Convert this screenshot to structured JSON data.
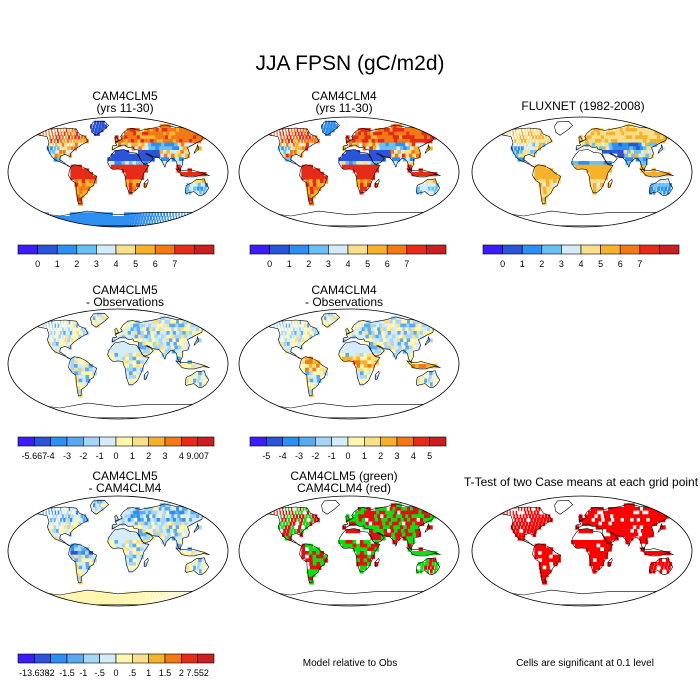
{
  "figure": {
    "title": "JJA FPSN (gC/m2d)"
  },
  "panels": [
    {
      "id": "p1",
      "title1": "CAM4CLM5",
      "title2": "(yrs 11-30)",
      "scheme": "abs"
    },
    {
      "id": "p2",
      "title1": "CAM4CLM4",
      "title2": "(yrs 11-30)",
      "scheme": "abs2"
    },
    {
      "id": "p3",
      "title1": "FLUXNET (1982-2008)",
      "title2": "",
      "scheme": "obs"
    },
    {
      "id": "p4",
      "title1": "CAM4CLM5",
      "title2": "- Observations",
      "scheme": "diff"
    },
    {
      "id": "p5",
      "title1": "CAM4CLM4",
      "title2": "- Observations",
      "scheme": "diff2"
    },
    {
      "id": "p6",
      "title1": "CAM4CLM5",
      "title2": "- CAM4CLM4",
      "scheme": "diff3"
    },
    {
      "id": "p7",
      "title1": "CAM4CLM5 (green)",
      "title2": "CAM4CLM4 (red)",
      "scheme": "greenred"
    },
    {
      "id": "p8",
      "title1": "T-Test of two Case means at each grid point",
      "title2": "",
      "scheme": "ttest"
    }
  ],
  "notes": {
    "model_relative": "Model relative to Obs",
    "significance": "Cells are significant at 0.1 level"
  },
  "chart_data": [
    {
      "type": "colorbar",
      "name": "absolute",
      "labels": [
        "0",
        "1",
        "2",
        "3",
        "4",
        "5",
        "6",
        "7"
      ],
      "colors": [
        "#3b1ef5",
        "#2b55d8",
        "#2e8ff0",
        "#69c0f5",
        "#d4ecf7",
        "#f8e08a",
        "#f6b22c",
        "#f27a16",
        "#e62b18",
        "#c82020"
      ]
    },
    {
      "type": "colorbar",
      "name": "clm5_minus_obs",
      "labels": [
        "-5.667",
        "-4",
        "-3",
        "-2",
        "-1",
        "0",
        "1",
        "2",
        "3",
        "4",
        "9.007"
      ],
      "colors": [
        "#3b1ef5",
        "#2b55d8",
        "#2e8ff0",
        "#5aaaf0",
        "#a6d6f7",
        "#d4ecf7",
        "#fff6b0",
        "#f8e08a",
        "#f6b22c",
        "#f27a16",
        "#e62b18",
        "#c82020"
      ]
    },
    {
      "type": "colorbar",
      "name": "clm4_minus_obs",
      "labels": [
        "-5",
        "-4",
        "-3",
        "-2",
        "-1",
        "0",
        "1",
        "2",
        "3",
        "4",
        "5"
      ],
      "colors": [
        "#3b1ef5",
        "#2b55d8",
        "#2e8ff0",
        "#5aaaf0",
        "#a6d6f7",
        "#d4ecf7",
        "#fff6b0",
        "#f8e08a",
        "#f6b22c",
        "#f27a16",
        "#e62b18",
        "#c82020"
      ]
    },
    {
      "type": "colorbar",
      "name": "clm5_minus_clm4",
      "labels": [
        "-13.638",
        "-2",
        "-1.5",
        "-1",
        "-.5",
        "0",
        ".5",
        "1",
        "1.5",
        "2",
        "7.552"
      ],
      "colors": [
        "#3b1ef5",
        "#2b55d8",
        "#2e8ff0",
        "#5aaaf0",
        "#a6d6f7",
        "#d4ecf7",
        "#fff6b0",
        "#f8e08a",
        "#f6b22c",
        "#f27a16",
        "#e62b18",
        "#c82020"
      ]
    }
  ]
}
